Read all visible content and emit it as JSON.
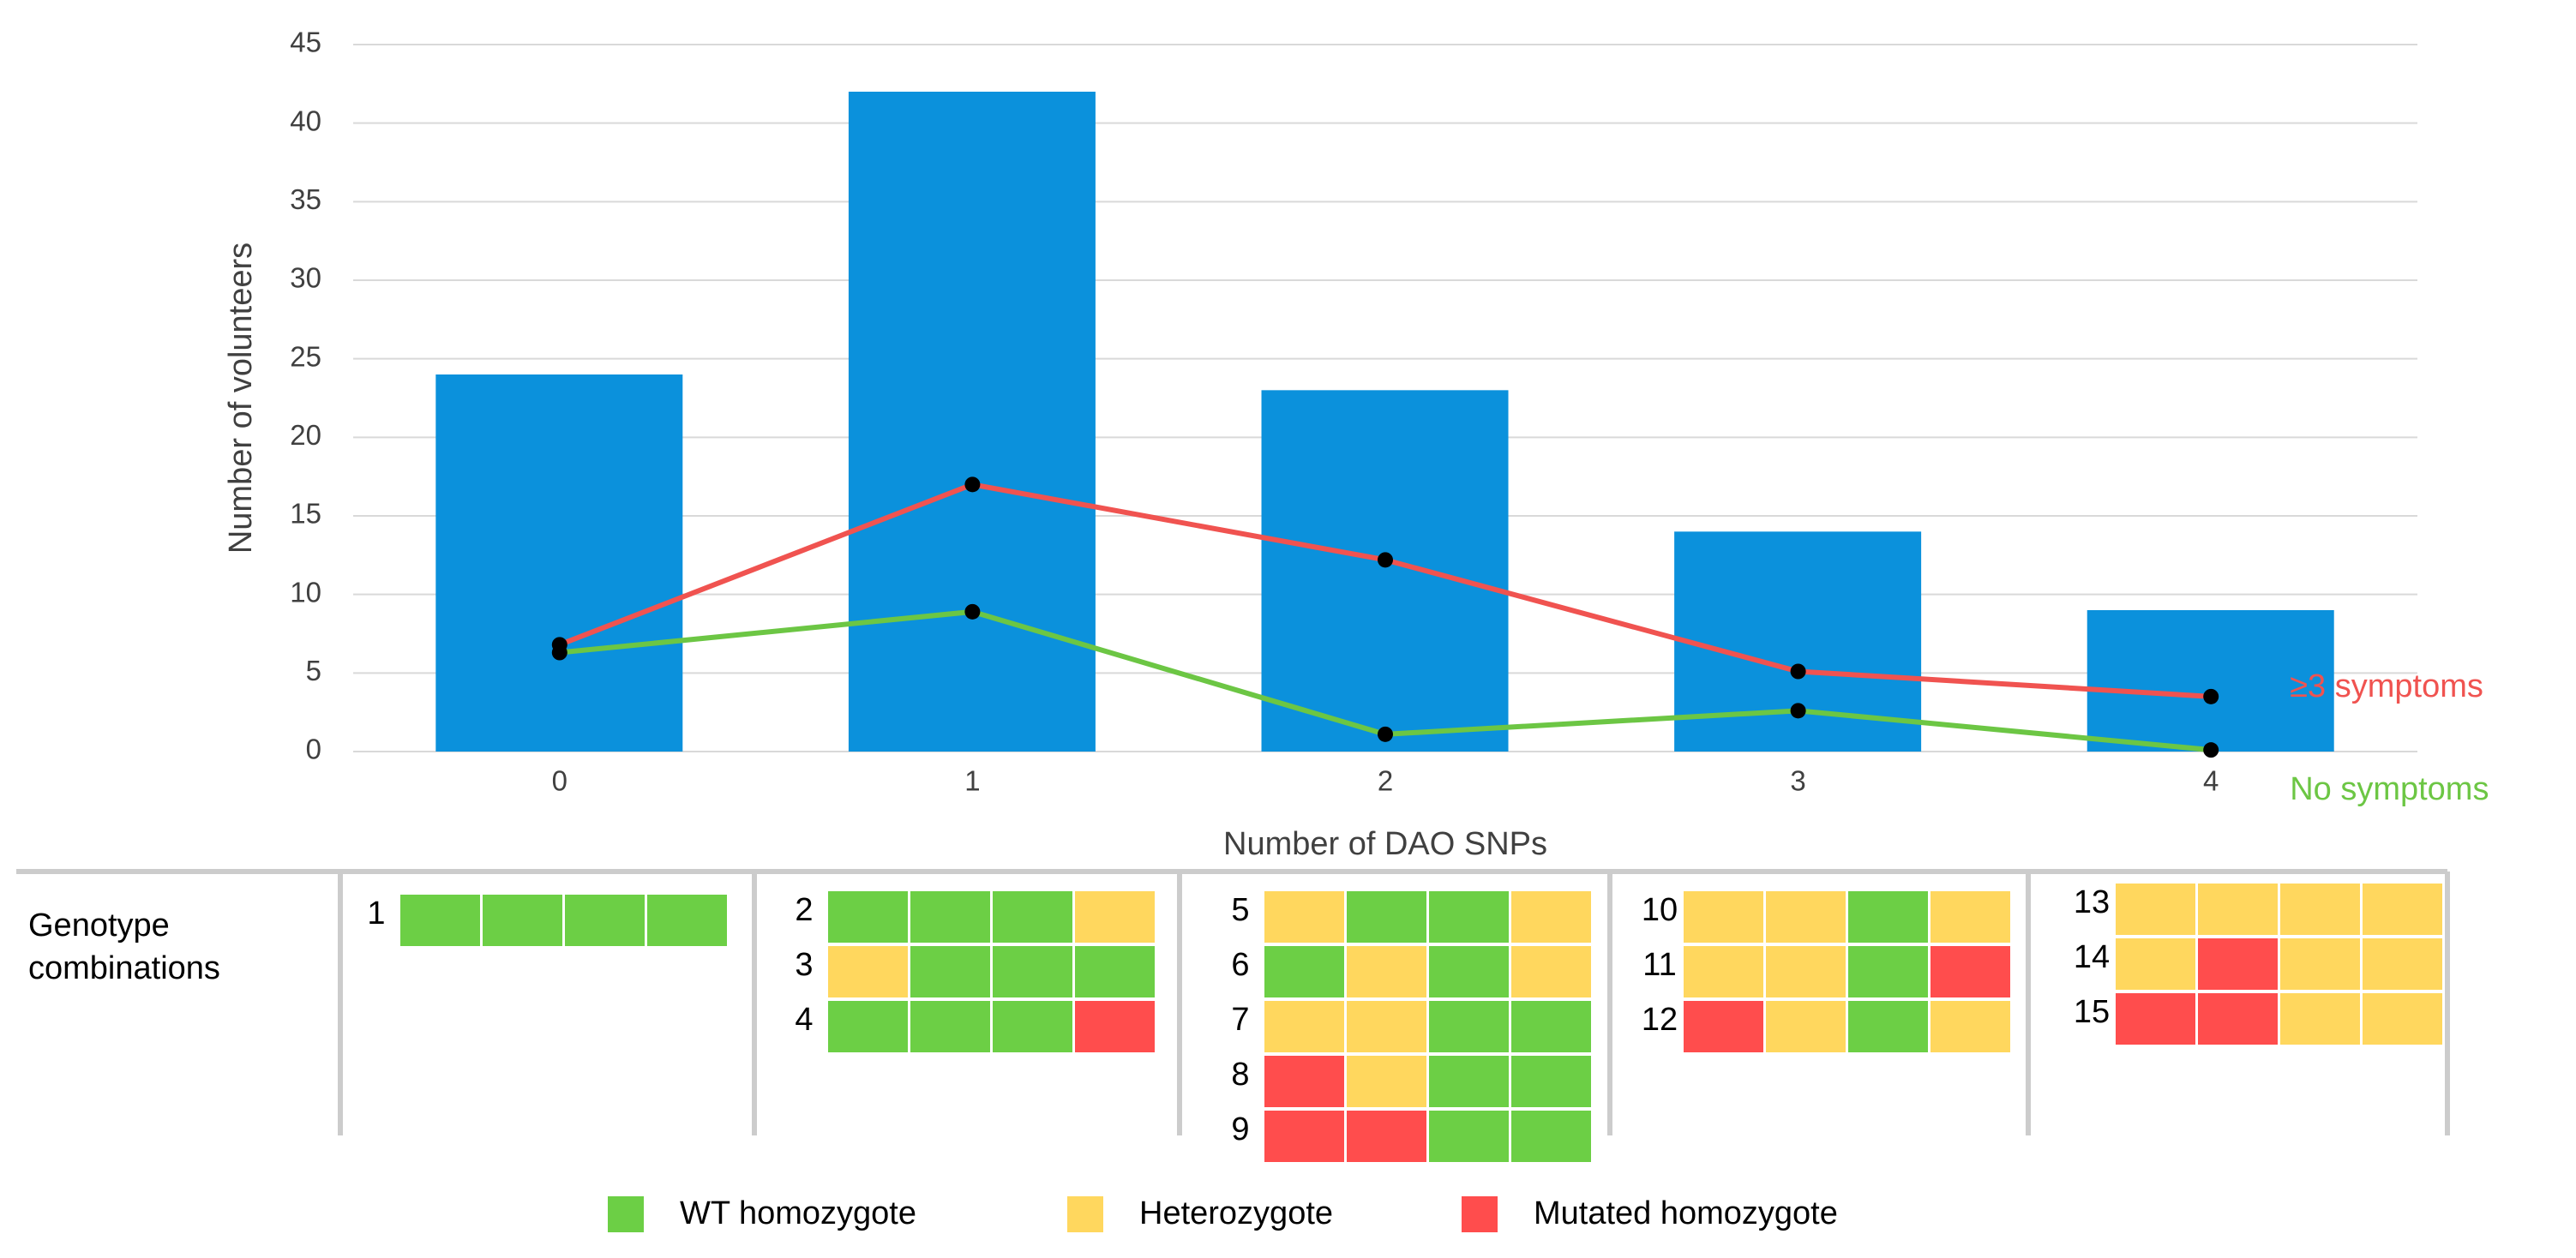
{
  "chart_data": {
    "type": "bar",
    "x_label": "Number of DAO SNPs",
    "y_label": "Number of volunteers",
    "categories": [
      "0",
      "1",
      "2",
      "3",
      "4"
    ],
    "series": [
      {
        "type": "bar",
        "color": "#0b91dc",
        "values": [
          24,
          42,
          23,
          14,
          9
        ]
      },
      {
        "type": "line",
        "name": "≥3 symptoms",
        "color": "#f05350",
        "marker_color": "#000000",
        "values": [
          6.8,
          17,
          12.2,
          5.1,
          3.5
        ]
      },
      {
        "type": "line",
        "name": "No symptoms",
        "color": "#6cc644",
        "marker_color": "#000000",
        "values": [
          6.3,
          8.9,
          1.1,
          2.6,
          0.1
        ]
      }
    ],
    "ylim": [
      0,
      45
    ],
    "yticks": [
      0,
      5,
      10,
      15,
      20,
      25,
      30,
      35,
      40,
      45
    ],
    "grid": true
  },
  "genotype_table": {
    "title": "Genotype combinations",
    "groups": [
      {
        "rows": [
          {
            "label": "1",
            "cells": [
              "#6ccf45",
              "#6ccf45",
              "#6ccf45",
              "#6ccf45"
            ]
          }
        ]
      },
      {
        "rows": [
          {
            "label": "2",
            "cells": [
              "#6ccf45",
              "#6ccf45",
              "#6ccf45",
              "#ffd75e"
            ]
          },
          {
            "label": "3",
            "cells": [
              "#ffd75e",
              "#6ccf45",
              "#6ccf45",
              "#6ccf45"
            ]
          },
          {
            "label": "4",
            "cells": [
              "#6ccf45",
              "#6ccf45",
              "#6ccf45",
              "#ff4d4d"
            ]
          }
        ]
      },
      {
        "rows": [
          {
            "label": "5",
            "cells": [
              "#ffd75e",
              "#6ccf45",
              "#6ccf45",
              "#ffd75e"
            ]
          },
          {
            "label": "6",
            "cells": [
              "#6ccf45",
              "#ffd75e",
              "#6ccf45",
              "#ffd75e"
            ]
          },
          {
            "label": "7",
            "cells": [
              "#ffd75e",
              "#ffd75e",
              "#6ccf45",
              "#6ccf45"
            ]
          },
          {
            "label": "8",
            "cells": [
              "#ff4d4d",
              "#ffd75e",
              "#6ccf45",
              "#6ccf45"
            ]
          },
          {
            "label": "9",
            "cells": [
              "#ff4d4d",
              "#ff4d4d",
              "#6ccf45",
              "#6ccf45"
            ]
          }
        ]
      },
      {
        "rows": [
          {
            "label": "10",
            "cells": [
              "#ffd75e",
              "#ffd75e",
              "#6ccf45",
              "#ffd75e"
            ]
          },
          {
            "label": "11",
            "cells": [
              "#ffd75e",
              "#ffd75e",
              "#6ccf45",
              "#ff4d4d"
            ]
          },
          {
            "label": "12",
            "cells": [
              "#ff4d4d",
              "#ffd75e",
              "#6ccf45",
              "#ffd75e"
            ]
          }
        ]
      },
      {
        "rows": [
          {
            "label": "13",
            "cells": [
              "#ffd75e",
              "#ffd75e",
              "#ffd75e",
              "#ffd75e"
            ]
          },
          {
            "label": "14",
            "cells": [
              "#ffd75e",
              "#ff4d4d",
              "#ffd75e",
              "#ffd75e"
            ]
          },
          {
            "label": "15",
            "cells": [
              "#ff4d4d",
              "#ff4d4d",
              "#ffd75e",
              "#ffd75e"
            ]
          }
        ]
      }
    ]
  },
  "legend": {
    "items": [
      {
        "label": "WT homozygote",
        "color": "#6ccf45"
      },
      {
        "label": "Heterozygote",
        "color": "#ffd75e"
      },
      {
        "label": "Mutated homozygote",
        "color": "#ff4d4d"
      }
    ]
  }
}
